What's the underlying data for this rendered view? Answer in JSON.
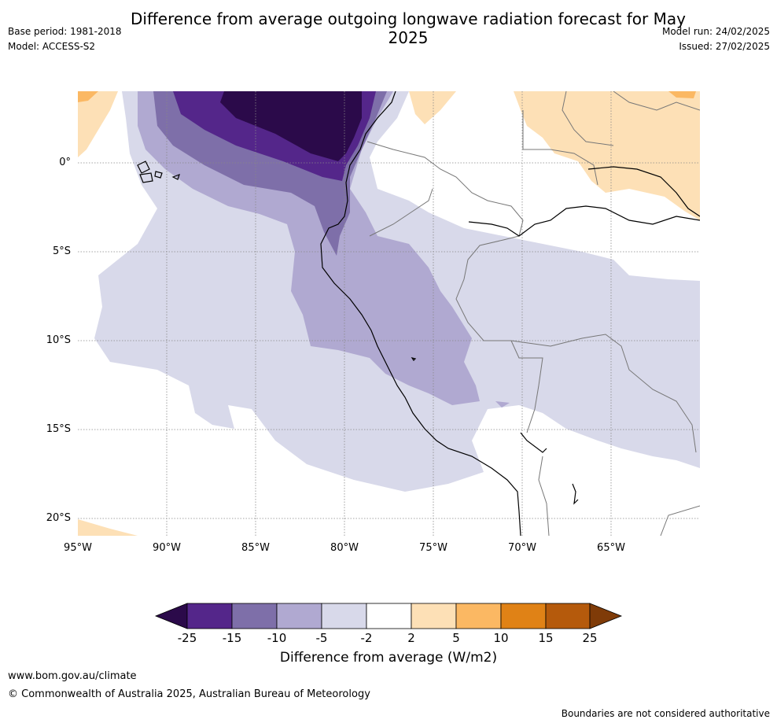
{
  "title": "Difference from average outgoing longwave radiation forecast for May 2025",
  "header_left": {
    "base_period": "Base period: 1981-2018",
    "model": "Model: ACCESS-S2"
  },
  "header_right": {
    "model_run": "Model run: 24/02/2025",
    "issued": "Issued: 27/02/2025"
  },
  "map": {
    "lat_ticks": [
      "0°",
      "5°S",
      "10°S",
      "15°S",
      "20°S"
    ],
    "lon_ticks": [
      "95°W",
      "90°W",
      "85°W",
      "80°W",
      "75°W",
      "70°W",
      "65°W"
    ],
    "extent": {
      "lon_min": -95,
      "lon_max": -60,
      "lat_min": -21,
      "lat_max": 4
    },
    "gridlines": true
  },
  "legend": {
    "ticks": [
      "-25",
      "-15",
      "-10",
      "-5",
      "-2",
      "2",
      "5",
      "10",
      "15",
      "25"
    ],
    "label": "Difference from average (W/m2)",
    "colors": [
      "#2b0a4a",
      "#54268a",
      "#7e6fa9",
      "#b0a9d1",
      "#d8d9ea",
      "#ffffff",
      "#fde0b6",
      "#fbb863",
      "#e08216",
      "#b55a0c",
      "#7f3b08"
    ]
  },
  "footer": {
    "url": "www.bom.gov.au/climate",
    "copyright": "© Commonwealth of Australia 2025, Australian Bureau of Meteorology",
    "disclaimer": "Boundaries are not considered authoritative"
  }
}
